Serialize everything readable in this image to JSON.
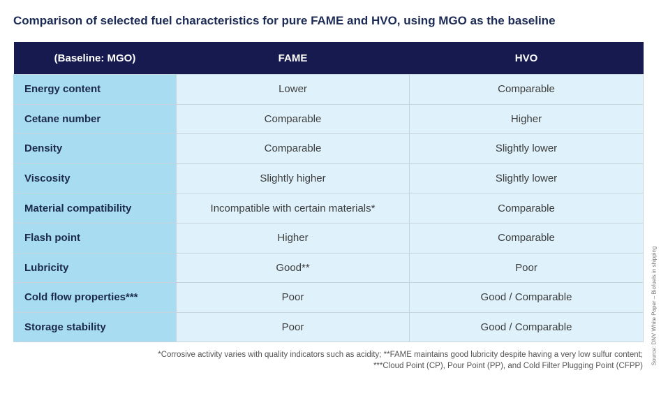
{
  "title": "Comparison of selected fuel characteristics for pure FAME and HVO, using MGO as the baseline",
  "table": {
    "headers": [
      "(Baseline: MGO)",
      "FAME",
      "HVO"
    ],
    "rows": [
      {
        "label": "Energy content",
        "fame": "Lower",
        "hvo": "Comparable"
      },
      {
        "label": "Cetane number",
        "fame": "Comparable",
        "hvo": "Higher"
      },
      {
        "label": "Density",
        "fame": "Comparable",
        "hvo": "Slightly lower"
      },
      {
        "label": "Viscosity",
        "fame": "Slightly higher",
        "hvo": "Slightly lower"
      },
      {
        "label": "Material compatibility",
        "fame": "Incompatible with certain materials*",
        "hvo": "Comparable"
      },
      {
        "label": "Flash point",
        "fame": "Higher",
        "hvo": "Comparable"
      },
      {
        "label": "Lubricity",
        "fame": "Good**",
        "hvo": "Poor"
      },
      {
        "label": "Cold flow properties***",
        "fame": "Poor",
        "hvo": "Good / Comparable"
      },
      {
        "label": "Storage stability",
        "fame": "Poor",
        "hvo": "Good / Comparable"
      }
    ]
  },
  "footnotes": [
    "*Corrosive activity varies with quality indicators such as acidity; **FAME maintains good lubricity despite having a very low sulfur content;",
    "***Cloud Point (CP), Pour Point (PP), and Cold Filter Plugging Point (CFPP)"
  ],
  "source": "Source: DNV White Paper – Biofuels in shipping"
}
